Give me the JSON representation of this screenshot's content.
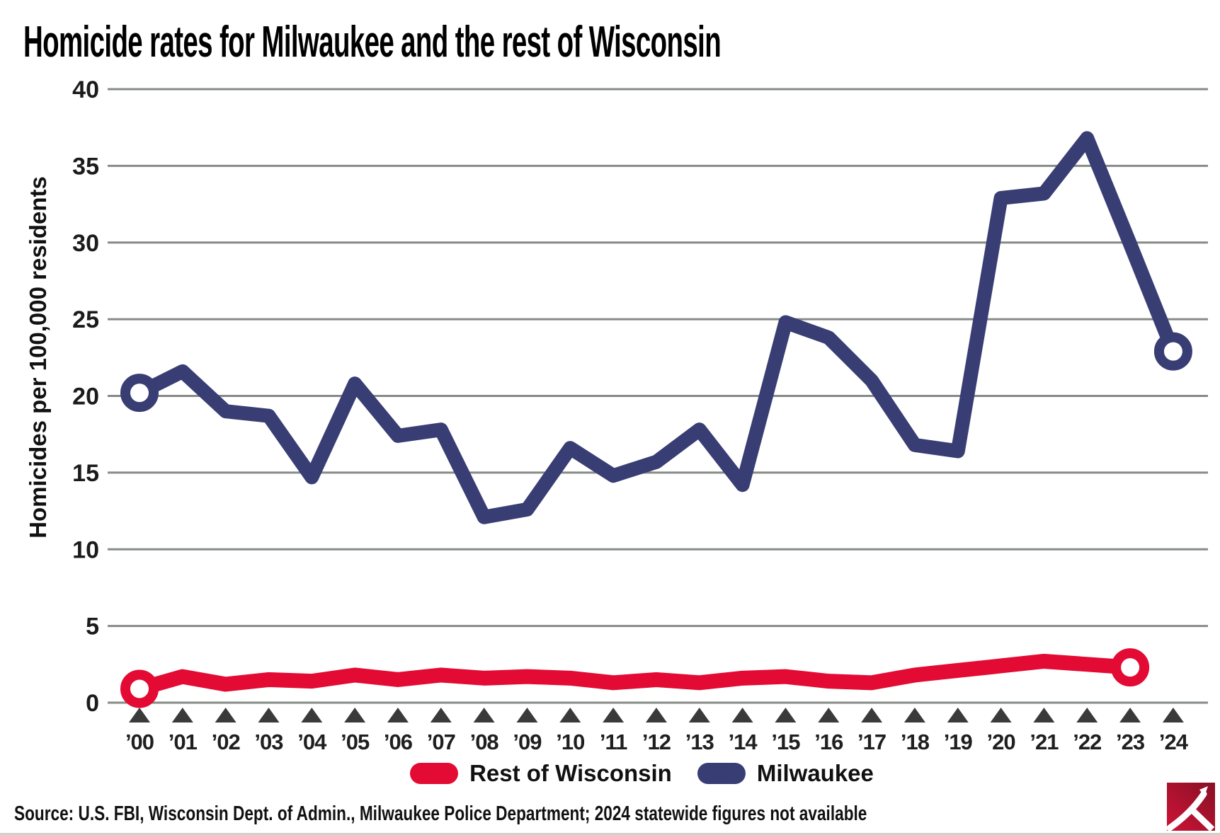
{
  "title": "Homicide rates for Milwaukee and the rest of Wisconsin",
  "source": "Source: U.S. FBI, Wisconsin Dept. of Admin., Milwaukee Police Department; 2024 statewide figures not available",
  "colors": {
    "milwaukee_navy": "#383e73",
    "rest_of_wisconsin_red": "#e30a33",
    "gridline_gray": "#868b86",
    "axis_triangle_gray": "#3a3a3a",
    "logo_red_light": "#cf1237",
    "logo_red_dark": "#871125"
  },
  "chart_data": {
    "type": "line",
    "title": "Homicide rates for Milwaukee and the rest of Wisconsin",
    "xlabel": "",
    "ylabel": "Homicides per 100,000 residents",
    "ylim": [
      0,
      40
    ],
    "yticks": [
      0,
      5,
      10,
      15,
      20,
      25,
      30,
      35,
      40
    ],
    "grid": true,
    "legend_position": "bottom-center",
    "marker_style": "open circle at first and last point of each series",
    "x_tick_labels": [
      "’00",
      "’01",
      "’02",
      "’03",
      "’04",
      "’05",
      "’06",
      "’07",
      "’08",
      "’09",
      "’10",
      "’11",
      "’12",
      "’13",
      "’14",
      "’15",
      "’16",
      "’17",
      "’18",
      "’19",
      "’20",
      "’21",
      "’22",
      "’23",
      "’24"
    ],
    "series": [
      {
        "name": "Rest of Wisconsin",
        "color": "#e30a33",
        "x": [
          2000,
          2001,
          2002,
          2003,
          2004,
          2005,
          2006,
          2007,
          2008,
          2009,
          2010,
          2011,
          2012,
          2013,
          2014,
          2015,
          2016,
          2017,
          2018,
          2019,
          2020,
          2021,
          2022,
          2023
        ],
        "values": [
          0.9,
          1.7,
          1.2,
          1.5,
          1.4,
          1.8,
          1.5,
          1.8,
          1.6,
          1.7,
          1.6,
          1.3,
          1.5,
          1.3,
          1.6,
          1.7,
          1.4,
          1.3,
          1.8,
          2.1,
          2.4,
          2.7,
          2.5,
          2.3
        ]
      },
      {
        "name": "Milwaukee",
        "color": "#383e73",
        "x": [
          2000,
          2001,
          2002,
          2003,
          2004,
          2005,
          2006,
          2007,
          2008,
          2009,
          2010,
          2011,
          2012,
          2013,
          2014,
          2015,
          2016,
          2017,
          2018,
          2019,
          2020,
          2021,
          2022,
          2023,
          2024
        ],
        "values": [
          20.2,
          21.6,
          19.0,
          18.7,
          14.7,
          20.8,
          17.4,
          17.8,
          12.1,
          12.6,
          16.6,
          14.8,
          15.7,
          17.8,
          14.2,
          24.8,
          23.8,
          21.0,
          16.8,
          16.4,
          32.9,
          33.2,
          36.8,
          29.9,
          22.9
        ]
      }
    ]
  }
}
